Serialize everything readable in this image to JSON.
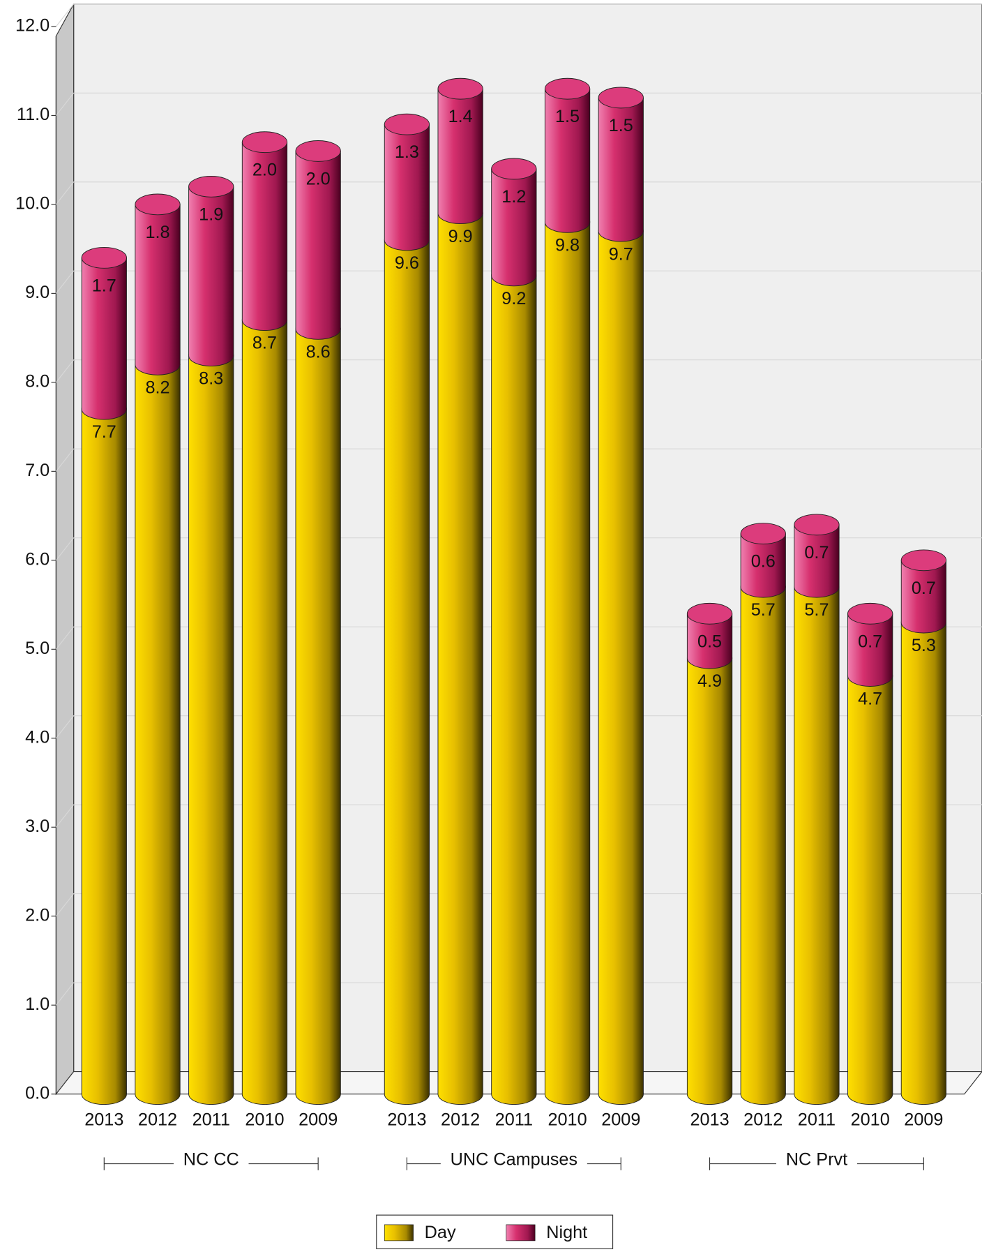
{
  "chart_data": {
    "type": "bar",
    "stacked": true,
    "categories": [
      "2013",
      "2012",
      "2011",
      "2010",
      "2009",
      "2013",
      "2012",
      "2011",
      "2010",
      "2009",
      "2013",
      "2012",
      "2011",
      "2010",
      "2009"
    ],
    "groups": [
      {
        "name": "NC CC",
        "size": 5
      },
      {
        "name": "UNC Campuses",
        "size": 5
      },
      {
        "name": "NC Prvt",
        "size": 5
      }
    ],
    "series": [
      {
        "name": "Day",
        "color": "#e8c000",
        "values": [
          7.7,
          8.2,
          8.3,
          8.7,
          8.6,
          9.6,
          9.9,
          9.2,
          9.8,
          9.7,
          4.9,
          5.7,
          5.7,
          4.7,
          5.3
        ],
        "value_labels": [
          "7.7",
          "8.2",
          "8.3",
          "8.7",
          "8.6",
          "9.6",
          "9.9",
          "9.2",
          "9.8",
          "9.7",
          "4.9",
          "5.7",
          "5.7",
          "4.7",
          "5.3"
        ]
      },
      {
        "name": "Night",
        "color": "#d6306e",
        "values": [
          1.7,
          1.8,
          1.9,
          2.0,
          2.0,
          1.3,
          1.4,
          1.2,
          1.5,
          1.5,
          0.5,
          0.6,
          0.7,
          0.7,
          0.7
        ],
        "value_labels": [
          "1.7",
          "1.8",
          "1.9",
          "2.0",
          "2.0",
          "1.3",
          "1.4",
          "1.2",
          "1.5",
          "1.5",
          "0.5",
          "0.6",
          "0.7",
          "0.7",
          "0.7"
        ]
      }
    ],
    "ylim": [
      0,
      12
    ],
    "yticks": [
      {
        "value": 0,
        "label": "0.0"
      },
      {
        "value": 1,
        "label": "1.0"
      },
      {
        "value": 2,
        "label": "2.0"
      },
      {
        "value": 3,
        "label": "3.0"
      },
      {
        "value": 4,
        "label": "4.0"
      },
      {
        "value": 5,
        "label": "5.0"
      },
      {
        "value": 6,
        "label": "6.0"
      },
      {
        "value": 7,
        "label": "7.0"
      },
      {
        "value": 8,
        "label": "8.0"
      },
      {
        "value": 9,
        "label": "9.0"
      },
      {
        "value": 10,
        "label": "10.0"
      },
      {
        "value": 11,
        "label": "11.0"
      },
      {
        "value": 12,
        "label": "12.0"
      }
    ],
    "grid": true,
    "legend": "bottom"
  }
}
